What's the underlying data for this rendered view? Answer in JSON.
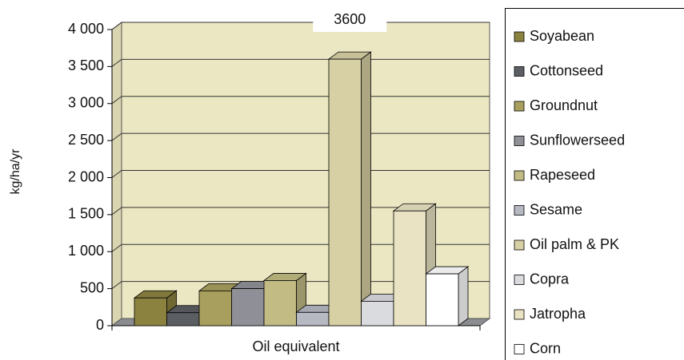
{
  "chart_data": {
    "type": "bar3d",
    "y_axis_label": "kg/ha/yr",
    "categories": [
      "Oil equivalent"
    ],
    "ylim": [
      0,
      4000
    ],
    "yticks": [
      0,
      500,
      {
        "value": 1000,
        "label": "1 000"
      },
      {
        "value": 1500,
        "label": "1 500"
      },
      {
        "value": 2000,
        "label": "2 000"
      },
      {
        "value": 2500,
        "label": "2 500"
      },
      {
        "value": 3000,
        "label": "3 000"
      },
      {
        "value": 3500,
        "label": "3 500"
      },
      {
        "value": 4000,
        "label": "4 000"
      }
    ],
    "grid": true,
    "legend": "right",
    "series": [
      {
        "name": "Soyabean",
        "color": "#8b8240",
        "values": [
          375
        ]
      },
      {
        "name": "Cottonseed",
        "color": "#5b5e62",
        "values": [
          175
        ]
      },
      {
        "name": "Groundnut",
        "color": "#a89f5e",
        "values": [
          470
        ]
      },
      {
        "name": "Sunflowerseed",
        "color": "#8f9097",
        "values": [
          500
        ]
      },
      {
        "name": "Rapeseed",
        "color": "#c2bb84",
        "values": [
          610
        ]
      },
      {
        "name": "Sesame",
        "color": "#b6b8c2",
        "values": [
          180
        ]
      },
      {
        "name": "Oil palm & PK",
        "color": "#d7d0a4",
        "values": [
          3600
        ],
        "show_value": true
      },
      {
        "name": "Copra",
        "color": "#dadbdf",
        "values": [
          330
        ]
      },
      {
        "name": "Jatropha",
        "color": "#e9e3c3",
        "values": [
          1550
        ]
      },
      {
        "name": "Corn",
        "color": "#ffffff",
        "values": [
          700
        ]
      }
    ]
  }
}
